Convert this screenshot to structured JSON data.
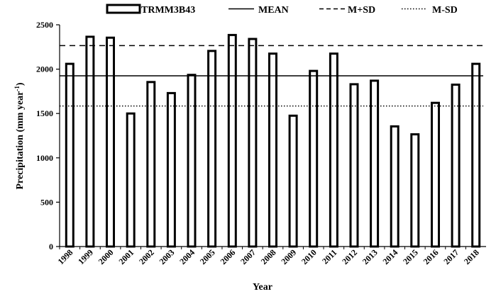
{
  "chart_data": {
    "type": "bar",
    "xlabel": "Year",
    "ylabel": "Precipitation (mm year",
    "ylabel_sup": "-1",
    "ylabel_end": ")",
    "ylim": [
      0,
      2500
    ],
    "yticks": [
      0,
      500,
      1000,
      1500,
      2000,
      2500
    ],
    "categories": [
      "1998",
      "1999",
      "2000",
      "2001",
      "2002",
      "2003",
      "2004",
      "2005",
      "2006",
      "2007",
      "2008",
      "2009",
      "2010",
      "2011",
      "2012",
      "2013",
      "2014",
      "2015",
      "2016",
      "2017",
      "2018"
    ],
    "series": [
      {
        "name": "TRMM3B43",
        "values": [
          2060,
          2365,
          2355,
          1500,
          1855,
          1730,
          1935,
          2205,
          2385,
          2340,
          2175,
          1475,
          1980,
          2175,
          1830,
          1870,
          1355,
          1265,
          1620,
          1825,
          2060
        ]
      }
    ],
    "reference_lines": [
      {
        "name": "MEAN",
        "value": 1925,
        "style": "solid"
      },
      {
        "name": "M+SD",
        "value": 2265,
        "style": "dashed"
      },
      {
        "name": "M-SD",
        "value": 1585,
        "style": "dotted"
      }
    ],
    "legend_position": "top",
    "grid": false
  }
}
